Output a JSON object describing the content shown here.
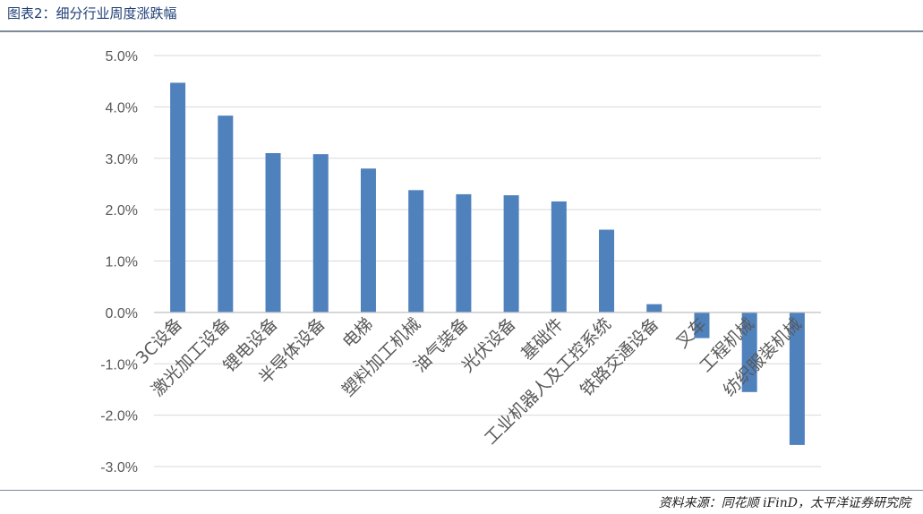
{
  "figure": {
    "title": "图表2：细分行业周度涨跌幅",
    "source": "资料来源：同花顺 iFinD，太平洋证券研究院"
  },
  "colors": {
    "bar": "#4f81bd",
    "grid": "#d9d9d9",
    "axis": "#bfbfbf",
    "label": "#595959"
  },
  "chart_data": {
    "type": "bar",
    "categories": [
      "3C设备",
      "激光加工设备",
      "锂电设备",
      "半导体设备",
      "电梯",
      "塑料加工机械",
      "油气装备",
      "光伏设备",
      "基础件",
      "工业机器人及工控系统",
      "铁路交通设备",
      "叉车",
      "工程机械",
      "纺织服装机械"
    ],
    "values": [
      4.47,
      3.83,
      3.1,
      3.08,
      2.8,
      2.38,
      2.3,
      2.28,
      2.16,
      1.61,
      0.16,
      -0.5,
      -1.55,
      -2.58
    ],
    "yticks": [
      "5.0%",
      "4.0%",
      "3.0%",
      "2.0%",
      "1.0%",
      "0.0%",
      "-1.0%",
      "-2.0%",
      "-3.0%"
    ],
    "ylim": [
      -3,
      5
    ],
    "grid": true,
    "legend": false
  }
}
